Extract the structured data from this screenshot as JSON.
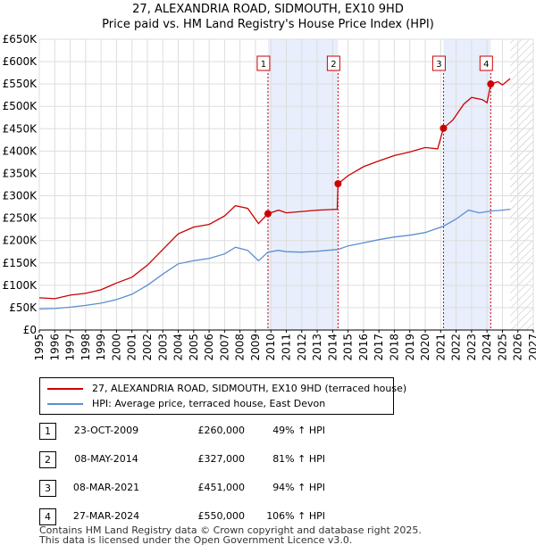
{
  "chart_data": {
    "type": "line",
    "title": "27, ALEXANDRIA ROAD, SIDMOUTH, EX10 9HD",
    "subtitle": "Price paid vs. HM Land Registry's House Price Index (HPI)",
    "ylim": [
      0,
      650000
    ],
    "xlim": [
      1995,
      2027
    ],
    "y_ticks": [
      {
        "v": 0,
        "label": "£0"
      },
      {
        "v": 50000,
        "label": "£50K"
      },
      {
        "v": 100000,
        "label": "£100K"
      },
      {
        "v": 150000,
        "label": "£150K"
      },
      {
        "v": 200000,
        "label": "£200K"
      },
      {
        "v": 250000,
        "label": "£250K"
      },
      {
        "v": 300000,
        "label": "£300K"
      },
      {
        "v": 350000,
        "label": "£350K"
      },
      {
        "v": 400000,
        "label": "£400K"
      },
      {
        "v": 450000,
        "label": "£450K"
      },
      {
        "v": 500000,
        "label": "£500K"
      },
      {
        "v": 550000,
        "label": "£550K"
      },
      {
        "v": 600000,
        "label": "£600K"
      },
      {
        "v": 650000,
        "label": "£650K"
      }
    ],
    "x_ticks": [
      "1995",
      "1996",
      "1997",
      "1998",
      "1999",
      "2000",
      "2001",
      "2002",
      "2003",
      "2004",
      "2005",
      "2006",
      "2007",
      "2008",
      "2009",
      "2010",
      "2011",
      "2012",
      "2013",
      "2014",
      "2015",
      "2016",
      "2017",
      "2018",
      "2019",
      "2020",
      "2021",
      "2022",
      "2023",
      "2024",
      "2025",
      "2026",
      "2027"
    ],
    "forecast_start": 2025.5,
    "shaded_periods": [
      [
        2009.81,
        2014.35
      ],
      [
        2021.18,
        2024.24
      ]
    ],
    "series": [
      {
        "name": "27, ALEXANDRIA ROAD, SIDMOUTH, EX10 9HD (terraced house)",
        "color": "#cc0000",
        "points": [
          [
            1995.0,
            72000
          ],
          [
            1996.0,
            70000
          ],
          [
            1997.0,
            78000
          ],
          [
            1998.0,
            82000
          ],
          [
            1999.0,
            90000
          ],
          [
            2000.0,
            105000
          ],
          [
            2001.0,
            118000
          ],
          [
            2002.0,
            145000
          ],
          [
            2003.0,
            180000
          ],
          [
            2004.0,
            215000
          ],
          [
            2005.0,
            230000
          ],
          [
            2006.0,
            236000
          ],
          [
            2007.0,
            255000
          ],
          [
            2007.7,
            278000
          ],
          [
            2008.5,
            272000
          ],
          [
            2009.2,
            238000
          ],
          [
            2009.81,
            260000
          ],
          [
            2010.5,
            268000
          ],
          [
            2011.0,
            262000
          ],
          [
            2012.0,
            265000
          ],
          [
            2013.0,
            268000
          ],
          [
            2014.3,
            270000
          ],
          [
            2014.35,
            327000
          ],
          [
            2015.0,
            345000
          ],
          [
            2016.0,
            365000
          ],
          [
            2017.0,
            378000
          ],
          [
            2018.0,
            390000
          ],
          [
            2019.0,
            398000
          ],
          [
            2020.0,
            408000
          ],
          [
            2020.8,
            405000
          ],
          [
            2021.18,
            451000
          ],
          [
            2021.8,
            470000
          ],
          [
            2022.5,
            505000
          ],
          [
            2023.0,
            520000
          ],
          [
            2023.7,
            515000
          ],
          [
            2024.0,
            508000
          ],
          [
            2024.24,
            550000
          ],
          [
            2024.7,
            555000
          ],
          [
            2025.0,
            548000
          ],
          [
            2025.5,
            562000
          ]
        ]
      },
      {
        "name": "HPI: Average price, terraced house, East Devon",
        "color": "#5b8fd0",
        "points": [
          [
            1995.0,
            47000
          ],
          [
            1996.0,
            48000
          ],
          [
            1997.0,
            51000
          ],
          [
            1998.0,
            55000
          ],
          [
            1999.0,
            60000
          ],
          [
            2000.0,
            68000
          ],
          [
            2001.0,
            80000
          ],
          [
            2002.0,
            100000
          ],
          [
            2003.0,
            125000
          ],
          [
            2004.0,
            148000
          ],
          [
            2005.0,
            155000
          ],
          [
            2006.0,
            160000
          ],
          [
            2007.0,
            170000
          ],
          [
            2007.7,
            185000
          ],
          [
            2008.5,
            178000
          ],
          [
            2009.2,
            155000
          ],
          [
            2009.81,
            174000
          ],
          [
            2010.5,
            178000
          ],
          [
            2011.0,
            175000
          ],
          [
            2012.0,
            174000
          ],
          [
            2013.0,
            176000
          ],
          [
            2014.35,
            180000
          ],
          [
            2015.0,
            188000
          ],
          [
            2016.0,
            195000
          ],
          [
            2017.0,
            202000
          ],
          [
            2018.0,
            208000
          ],
          [
            2019.0,
            212000
          ],
          [
            2020.0,
            218000
          ],
          [
            2021.18,
            232000
          ],
          [
            2022.0,
            248000
          ],
          [
            2022.8,
            268000
          ],
          [
            2023.5,
            262000
          ],
          [
            2024.24,
            266000
          ],
          [
            2025.0,
            268000
          ],
          [
            2025.5,
            270000
          ]
        ]
      }
    ],
    "sales": [
      {
        "label": "1",
        "x": 2009.81,
        "price": 260000
      },
      {
        "label": "2",
        "x": 2014.35,
        "price": 327000
      },
      {
        "label": "3",
        "x": 2021.18,
        "price": 451000
      },
      {
        "label": "4",
        "x": 2024.24,
        "price": 550000
      }
    ]
  },
  "legend": {
    "property_label": "27, ALEXANDRIA ROAD, SIDMOUTH, EX10 9HD (terraced house)",
    "hpi_label": "HPI: Average price, terraced house, East Devon",
    "property_color": "#cc0000",
    "hpi_color": "#5b8fd0"
  },
  "sales_table": [
    {
      "num": "1",
      "date": "23-OCT-2009",
      "price": "£260,000",
      "hpi": "49% ↑ HPI"
    },
    {
      "num": "2",
      "date": "08-MAY-2014",
      "price": "£327,000",
      "hpi": "81% ↑ HPI"
    },
    {
      "num": "3",
      "date": "08-MAR-2021",
      "price": "£451,000",
      "hpi": "94% ↑ HPI"
    },
    {
      "num": "4",
      "date": "27-MAR-2024",
      "price": "£550,000",
      "hpi": "106% ↑ HPI"
    }
  ],
  "footer": {
    "line1": "Contains HM Land Registry data © Crown copyright and database right 2025.",
    "line2": "This data is licensed under the Open Government Licence v3.0."
  }
}
